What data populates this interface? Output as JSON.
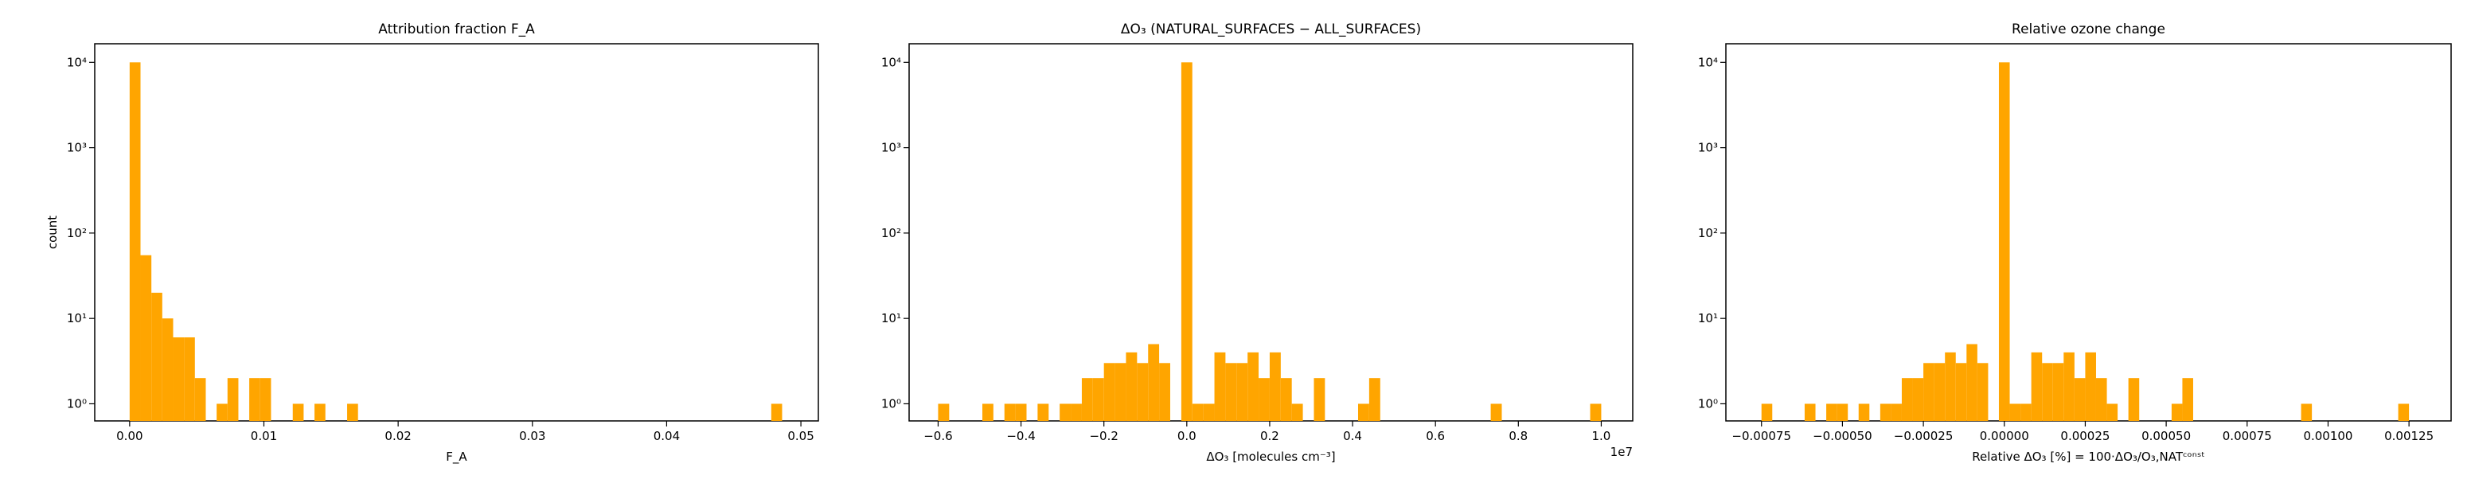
{
  "chart_data": [
    {
      "type": "histogram",
      "title": "Attribution fraction F_A",
      "x_label": "F_A",
      "y_label": "count",
      "color": "#ffa500",
      "yscale": "log",
      "bins": [
        0,
        0.00081,
        0.00162,
        0.00243,
        0.00324,
        0.00405,
        0.00486,
        0.00567,
        0.00648,
        0.00729,
        0.0081,
        0.00891,
        0.00972,
        0.01053,
        0.01134,
        0.01215,
        0.01296,
        0.01377,
        0.01458,
        0.01539,
        0.0162,
        0.01701,
        0.01782,
        0.01863,
        0.01944,
        0.02025,
        0.02106,
        0.02187,
        0.02268,
        0.02349,
        0.0243,
        0.02511,
        0.02592,
        0.02673,
        0.02754,
        0.02835,
        0.02916,
        0.02997,
        0.03078,
        0.03159,
        0.0324,
        0.03321,
        0.03402,
        0.03483,
        0.03564,
        0.03645,
        0.03726,
        0.03807,
        0.03888,
        0.03969,
        0.0405,
        0.04131,
        0.04212,
        0.04293,
        0.04374,
        0.04455,
        0.04536,
        0.04617,
        0.04698,
        0.04779,
        0.0486
      ],
      "values": [
        10000,
        55,
        20,
        10,
        6,
        6,
        2,
        0,
        1,
        2,
        0,
        2,
        2,
        0,
        0,
        1,
        0,
        1,
        0,
        0,
        1,
        0,
        0,
        0,
        0,
        0,
        0,
        0,
        0,
        0,
        0,
        0,
        0,
        0,
        0,
        0,
        0,
        0,
        0,
        0,
        0,
        0,
        0,
        0,
        0,
        0,
        0,
        0,
        0,
        0,
        0,
        0,
        0,
        0,
        0,
        0,
        0,
        0,
        0,
        1
      ],
      "xlim": [
        -0.0026,
        0.0513
      ],
      "xticks": [
        {
          "value": 0,
          "label": "0.00"
        },
        0.01,
        0.02,
        0.03,
        0.04,
        0.05
      ],
      "ylim": [
        0.63,
        16500
      ],
      "yticks": [
        {
          "value": 1,
          "label": "10⁰"
        },
        {
          "value": 10,
          "label": "10¹"
        },
        {
          "value": 100,
          "label": "10²"
        },
        {
          "value": 1000,
          "label": "10³"
        },
        {
          "value": 10000,
          "label": "10⁴"
        }
      ]
    },
    {
      "type": "histogram",
      "title": "ΔO₃ (NATURAL_SURFACES − ALL_SURFACES)",
      "x_label": "ΔO₃ [molecules cm⁻³]",
      "x_offset_label": "1e7",
      "color": "#ffa500",
      "yscale": "log",
      "bins": [
        -0.6,
        -0.5733,
        -0.5467,
        -0.52,
        -0.4933,
        -0.4667,
        -0.44,
        -0.4133,
        -0.3867,
        -0.36,
        -0.3333,
        -0.3067,
        -0.28,
        -0.2533,
        -0.2267,
        -0.2,
        -0.1733,
        -0.1467,
        -0.12,
        -0.0933,
        -0.0667,
        -0.04,
        -0.0133,
        0.0133,
        0.04,
        0.0667,
        0.0933,
        0.12,
        0.1467,
        0.1733,
        0.2,
        0.2267,
        0.2533,
        0.28,
        0.3067,
        0.3333,
        0.36,
        0.3867,
        0.4133,
        0.44,
        0.4667,
        0.4933,
        0.52,
        0.5467,
        0.5733,
        0.6,
        0.6267,
        0.6533,
        0.68,
        0.7067,
        0.7333,
        0.76,
        0.7867,
        0.8133,
        0.84,
        0.8667,
        0.8933,
        0.92,
        0.9467,
        0.9733,
        1.0
      ],
      "values": [
        1,
        0,
        0,
        0,
        1,
        0,
        1,
        1,
        0,
        1,
        0,
        1,
        1,
        2,
        2,
        3,
        3,
        4,
        3,
        5,
        3,
        0,
        10000,
        1,
        1,
        4,
        3,
        3,
        4,
        2,
        4,
        2,
        1,
        0,
        2,
        0,
        0,
        0,
        1,
        2,
        0,
        0,
        0,
        0,
        0,
        0,
        0,
        0,
        0,
        0,
        1,
        0,
        0,
        0,
        0,
        0,
        0,
        0,
        0,
        1
      ],
      "xlim": [
        -0.67,
        1.076
      ],
      "xticks": [
        {
          "value": -0.6,
          "label": "−0.6"
        },
        {
          "value": -0.4,
          "label": "−0.4"
        },
        {
          "value": -0.2,
          "label": "−0.2"
        },
        {
          "value": 0,
          "label": "0.0"
        },
        0.2,
        0.4,
        0.6,
        0.8,
        {
          "value": 1,
          "label": "1.0"
        }
      ],
      "ylim": [
        0.63,
        16500
      ],
      "yticks": [
        {
          "value": 1,
          "label": "10⁰"
        },
        {
          "value": 10,
          "label": "10¹"
        },
        {
          "value": 100,
          "label": "10²"
        },
        {
          "value": 1000,
          "label": "10³"
        },
        {
          "value": 10000,
          "label": "10⁴"
        }
      ]
    },
    {
      "type": "histogram",
      "title": "Relative ozone change",
      "x_label": "Relative ΔO₃ [%]  = 100·ΔO₃/O₃,NATᶜᵒⁿˢᵗ",
      "color": "#ffa500",
      "yscale": "log",
      "bins": [
        -0.00075,
        -0.0007167,
        -0.0006833,
        -0.00065,
        -0.0006167,
        -0.0005833,
        -0.00055,
        -0.0005167,
        -0.0004833,
        -0.00045,
        -0.0004167,
        -0.0003833,
        -0.00035,
        -0.0003167,
        -0.0002833,
        -0.00025,
        -0.0002167,
        -0.0001833,
        -0.00015,
        -0.0001167,
        -8.33e-05,
        -5e-05,
        -1.67e-05,
        1.67e-05,
        5e-05,
        8.33e-05,
        0.0001167,
        0.00015,
        0.0001833,
        0.0002167,
        0.00025,
        0.0002833,
        0.0003167,
        0.00035,
        0.0003833,
        0.0004167,
        0.00045,
        0.0004833,
        0.0005167,
        0.00055,
        0.0005833,
        0.0006167,
        0.00065,
        0.0006833,
        0.0007167,
        0.00075,
        0.0007833,
        0.0008167,
        0.00085,
        0.0008833,
        0.0009167,
        0.00095,
        0.0009833,
        0.0010167,
        0.00105,
        0.0010833,
        0.0011167,
        0.00115,
        0.0011833,
        0.0012167,
        0.00125
      ],
      "values": [
        1,
        0,
        0,
        0,
        1,
        0,
        1,
        1,
        0,
        1,
        0,
        1,
        1,
        2,
        2,
        3,
        3,
        4,
        3,
        5,
        3,
        0,
        10000,
        1,
        1,
        4,
        3,
        3,
        4,
        2,
        4,
        2,
        1,
        0,
        2,
        0,
        0,
        0,
        1,
        2,
        0,
        0,
        0,
        0,
        0,
        0,
        0,
        0,
        0,
        0,
        1,
        0,
        0,
        0,
        0,
        0,
        0,
        0,
        0,
        1
      ],
      "xlim": [
        -0.00086,
        0.00138
      ],
      "xticks": [
        {
          "value": -0.00075,
          "label": "−0.00075"
        },
        {
          "value": -0.0005,
          "label": "−0.00050"
        },
        {
          "value": -0.00025,
          "label": "−0.00025"
        },
        {
          "value": 0,
          "label": "0.00000"
        },
        0.00025,
        {
          "value": 0.0005,
          "label": "0.00050"
        },
        0.00075,
        {
          "value": 0.001,
          "label": "0.00100"
        },
        0.00125
      ],
      "ylim": [
        0.63,
        16500
      ],
      "yticks": [
        {
          "value": 1,
          "label": "10⁰"
        },
        {
          "value": 10,
          "label": "10¹"
        },
        {
          "value": 100,
          "label": "10²"
        },
        {
          "value": 1000,
          "label": "10³"
        },
        {
          "value": 10000,
          "label": "10⁴"
        }
      ]
    }
  ]
}
